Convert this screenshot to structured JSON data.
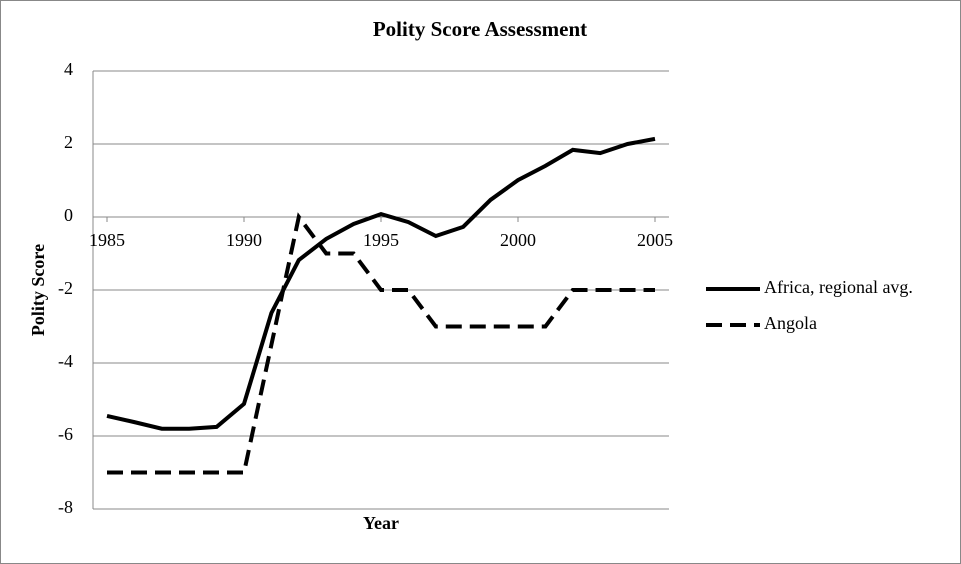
{
  "chart_data": {
    "type": "line",
    "title": "Polity Score Assessment",
    "x_label": "Year",
    "y_label": "Polity Score",
    "x": [
      1985,
      1986,
      1987,
      1988,
      1989,
      1990,
      1991,
      1992,
      1993,
      1994,
      1995,
      1996,
      1997,
      1998,
      1999,
      2000,
      2001,
      2002,
      2003,
      2004,
      2005
    ],
    "series": [
      {
        "name": "Africa, regional avg.",
        "color": "#000000",
        "dash": "solid",
        "values": [
          -5.45,
          -5.62,
          -5.8,
          -5.8,
          -5.75,
          -5.12,
          -2.63,
          -1.18,
          -0.6,
          -0.19,
          0.08,
          -0.14,
          -0.52,
          -0.27,
          0.47,
          1.01,
          1.4,
          1.84,
          1.75,
          2.0,
          2.14
        ]
      },
      {
        "name": "Angola",
        "color": "#000000",
        "dash": "dashed",
        "values": [
          -7,
          -7,
          -7,
          -7,
          -7,
          -7,
          -3.5,
          0,
          -1,
          -1,
          -2,
          -2,
          -3,
          -3,
          -3,
          -3,
          -3,
          -2,
          -2,
          -2,
          -2
        ]
      }
    ],
    "xlim": [
      1985,
      2005
    ],
    "xticks": [
      1985,
      1990,
      1995,
      2000,
      2005
    ],
    "ylim": [
      -8,
      4
    ],
    "yticks": [
      -8,
      -6,
      -4,
      -2,
      0,
      2,
      4
    ],
    "grid": true,
    "legend": "right"
  }
}
